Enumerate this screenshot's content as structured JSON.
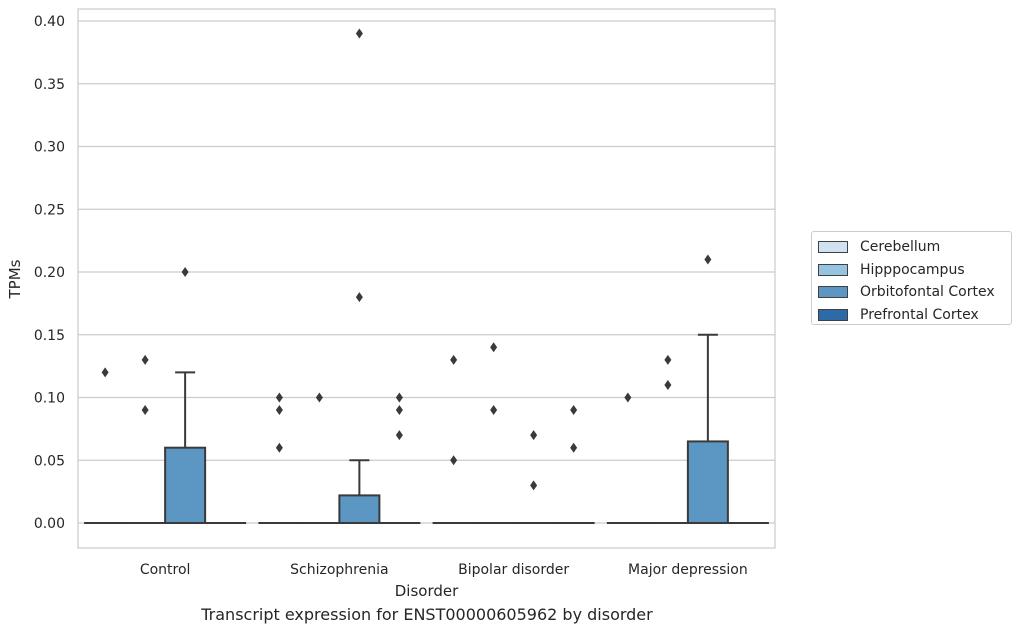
{
  "chart_data": {
    "type": "box",
    "title": "",
    "caption": "Transcript expression for ENST00000605962 by disorder",
    "xlabel": "Disorder",
    "ylabel": "TPMs",
    "ylim": [
      -0.019,
      0.41
    ],
    "yticks": [
      "0.00",
      "0.05",
      "0.10",
      "0.15",
      "0.20",
      "0.25",
      "0.30",
      "0.35",
      "0.40"
    ],
    "ytick_values": [
      0,
      0.05,
      0.1,
      0.15,
      0.2,
      0.25,
      0.3,
      0.35,
      0.4
    ],
    "grid": "horizontal",
    "legend_position": "right",
    "categories": [
      "Control",
      "Schizophrenia",
      "Bipolar disorder",
      "Major depression"
    ],
    "series": [
      {
        "name": "Cerebellum",
        "color": "#d0e1f2",
        "boxes": [
          {
            "q1": 0,
            "median": 0,
            "q3": 0,
            "whisker_low": 0,
            "whisker_high": 0,
            "outliers": [
              0.12
            ]
          },
          {
            "q1": 0,
            "median": 0,
            "q3": 0,
            "whisker_low": 0,
            "whisker_high": 0,
            "outliers": [
              0.06,
              0.09,
              0.1
            ]
          },
          {
            "q1": 0,
            "median": 0,
            "q3": 0,
            "whisker_low": 0,
            "whisker_high": 0,
            "outliers": [
              0.05,
              0.13
            ]
          },
          {
            "q1": 0,
            "median": 0,
            "q3": 0,
            "whisker_low": 0,
            "whisker_high": 0,
            "outliers": [
              0.1
            ]
          }
        ]
      },
      {
        "name": "Hipppocampus",
        "color": "#94c4df",
        "boxes": [
          {
            "q1": 0,
            "median": 0,
            "q3": 0,
            "whisker_low": 0,
            "whisker_high": 0,
            "outliers": [
              0.09,
              0.13
            ]
          },
          {
            "q1": 0,
            "median": 0,
            "q3": 0,
            "whisker_low": 0,
            "whisker_high": 0,
            "outliers": [
              0.1
            ]
          },
          {
            "q1": 0,
            "median": 0,
            "q3": 0,
            "whisker_low": 0,
            "whisker_high": 0,
            "outliers": [
              0.09,
              0.14
            ]
          },
          {
            "q1": 0,
            "median": 0,
            "q3": 0,
            "whisker_low": 0,
            "whisker_high": 0,
            "outliers": [
              0.11,
              0.13
            ]
          }
        ]
      },
      {
        "name": "Orbitofontal Cortex",
        "color": "#5c97c3",
        "boxes": [
          {
            "q1": 0,
            "median": 0,
            "q3": 0.06,
            "whisker_low": 0,
            "whisker_high": 0.12,
            "outliers": [
              0.2
            ]
          },
          {
            "q1": 0,
            "median": 0,
            "q3": 0.022,
            "whisker_low": 0,
            "whisker_high": 0.05,
            "outliers": [
              0.18,
              0.39
            ]
          },
          {
            "q1": 0,
            "median": 0,
            "q3": 0,
            "whisker_low": 0,
            "whisker_high": 0,
            "outliers": [
              0.03,
              0.07
            ]
          },
          {
            "q1": 0,
            "median": 0,
            "q3": 0.065,
            "whisker_low": 0,
            "whisker_high": 0.15,
            "outliers": [
              0.21
            ]
          }
        ]
      },
      {
        "name": "Prefrontal Cortex",
        "color": "#2e6aa8",
        "boxes": [
          {
            "q1": 0,
            "median": 0,
            "q3": 0,
            "whisker_low": 0,
            "whisker_high": 0,
            "outliers": []
          },
          {
            "q1": 0,
            "median": 0,
            "q3": 0,
            "whisker_low": 0,
            "whisker_high": 0,
            "outliers": [
              0.07,
              0.09,
              0.1
            ]
          },
          {
            "q1": 0,
            "median": 0,
            "q3": 0,
            "whisker_low": 0,
            "whisker_high": 0,
            "outliers": [
              0.06,
              0.09
            ]
          },
          {
            "q1": 0,
            "median": 0,
            "q3": 0,
            "whisker_low": 0,
            "whisker_high": 0,
            "outliers": []
          }
        ]
      }
    ]
  }
}
